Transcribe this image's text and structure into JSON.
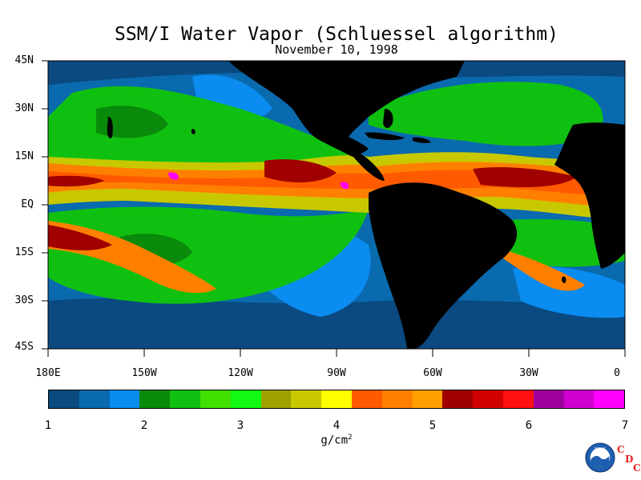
{
  "title": "SSM/I Water Vapor (Schluessel algorithm)",
  "subtitle": "November 10, 1998",
  "y_axis_labels": [
    "45N",
    "30N",
    "15N",
    "EQ",
    "15S",
    "30S",
    "45S"
  ],
  "x_axis_labels": [
    "180E",
    "150W",
    "120W",
    "90W",
    "60W",
    "30W",
    "0"
  ],
  "colorbar": {
    "tick_labels": [
      "1",
      "2",
      "3",
      "4",
      "5",
      "6",
      "7"
    ],
    "units_base": "g/cm",
    "units_exp": "2",
    "colors": [
      "#0a4a80",
      "#0a6aae",
      "#0a8cf0",
      "#0a8a0a",
      "#10c010",
      "#40e000",
      "#12fa12",
      "#a0a000",
      "#c8c800",
      "#ffff00",
      "#ff5a00",
      "#ff8000",
      "#ffa000",
      "#a00000",
      "#d00000",
      "#ff1010",
      "#a000a0",
      "#d000d0",
      "#ff00ff"
    ]
  },
  "logo": {
    "noaa_text": "NOAA",
    "cdc_letters": [
      "C",
      "D",
      "C"
    ]
  },
  "colors": {
    "land": "#000000",
    "ocean_dry": "#0a4a80",
    "moist": "#ff8000",
    "very_moist": "#a00000"
  }
}
